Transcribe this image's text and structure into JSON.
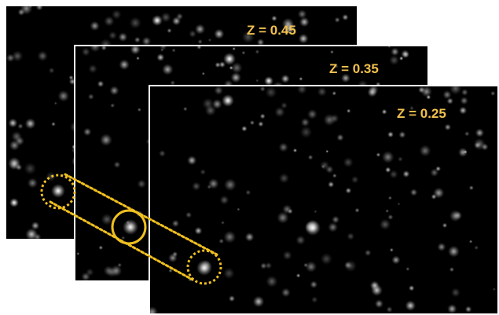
{
  "panels": {
    "z045": {
      "label": "Z = 0.45"
    },
    "z035": {
      "label": "Z = 0.35"
    },
    "z025": {
      "label": "Z = 0.25"
    }
  },
  "colors": {
    "label": "#f2c14e",
    "highlight": "#f0c020",
    "background": "#000000",
    "frame": "#ffffff"
  }
}
